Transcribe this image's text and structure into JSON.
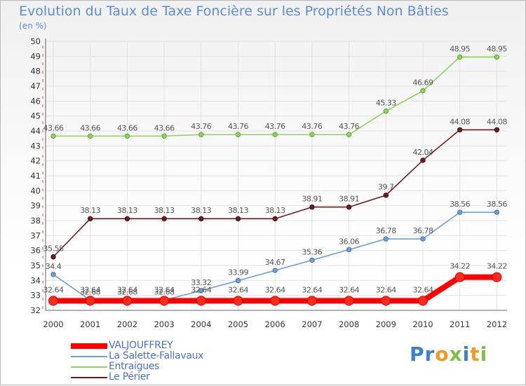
{
  "chart_data": {
    "type": "line",
    "title": "Evolution du Taux de Taxe Foncière sur les Propriétés Non Bâties",
    "subtitle": "(en %)",
    "xlabel": "",
    "ylabel": "",
    "categories": [
      "2000",
      "2001",
      "2002",
      "2003",
      "2004",
      "2005",
      "2006",
      "2007",
      "2008",
      "2009",
      "2010",
      "2011",
      "2012"
    ],
    "ylim": [
      32,
      50
    ],
    "yticks": [
      32,
      33,
      34,
      35,
      36,
      37,
      38,
      39,
      40,
      41,
      42,
      43,
      44,
      45,
      46,
      47,
      48,
      49,
      50
    ],
    "grid": true,
    "legend_position": "bottom-left",
    "series": [
      {
        "name": "VALJOUFFREY",
        "color": "#ff0000",
        "labels": [
          "32.64",
          "32.64",
          "32.64",
          "32.64",
          "32.64",
          "32.64",
          "32.64",
          "32.64",
          "32.64",
          "32.64",
          "32.64",
          "34.22",
          "34.22"
        ],
        "values": [
          32.64,
          32.64,
          32.64,
          32.64,
          32.64,
          32.64,
          32.64,
          32.64,
          32.64,
          32.64,
          32.64,
          34.22,
          34.22
        ]
      },
      {
        "name": "La Salette-Fallavaux",
        "color": "#6ca0d6",
        "labels": [
          "34.4",
          "32.68",
          "32.68",
          "32.68",
          "33.32",
          "33.99",
          "34.67",
          "35.36",
          "36.06",
          "36.78",
          "36.78",
          "38.56",
          "38.56"
        ],
        "values": [
          34.4,
          32.68,
          32.68,
          32.68,
          33.32,
          33.99,
          34.67,
          35.36,
          36.06,
          36.78,
          36.78,
          38.56,
          38.56
        ]
      },
      {
        "name": "Entraigues",
        "color": "#8fd45a",
        "labels": [
          "43.66",
          "43.66",
          "43.66",
          "43.66",
          "43.76",
          "43.76",
          "43.76",
          "43.76",
          "43.76",
          "45.33",
          "46.69",
          "48.95",
          "48.95"
        ],
        "values": [
          43.66,
          43.66,
          43.66,
          43.66,
          43.76,
          43.76,
          43.76,
          43.76,
          43.76,
          45.33,
          46.69,
          48.95,
          48.95
        ]
      },
      {
        "name": "Le Périer",
        "color": "#6b1f1f",
        "labels": [
          "35.58",
          "38.13",
          "38.13",
          "38.13",
          "38.13",
          "38.13",
          "38.13",
          "38.91",
          "38.91",
          "39.7",
          "42.04",
          "44.08",
          "44.08"
        ],
        "values": [
          35.58,
          38.13,
          38.13,
          38.13,
          38.13,
          38.13,
          38.13,
          38.91,
          38.91,
          39.7,
          42.04,
          44.08,
          44.08
        ]
      }
    ]
  },
  "logo": {
    "letters": [
      "P",
      "r",
      "o",
      "x",
      "i",
      "t",
      "i"
    ],
    "colors": [
      "#3a7fd1",
      "#3a7fd1",
      "#f39a1e",
      "#7cc142",
      "#3a7fd1",
      "#f39a1e",
      "#7cc142"
    ]
  }
}
